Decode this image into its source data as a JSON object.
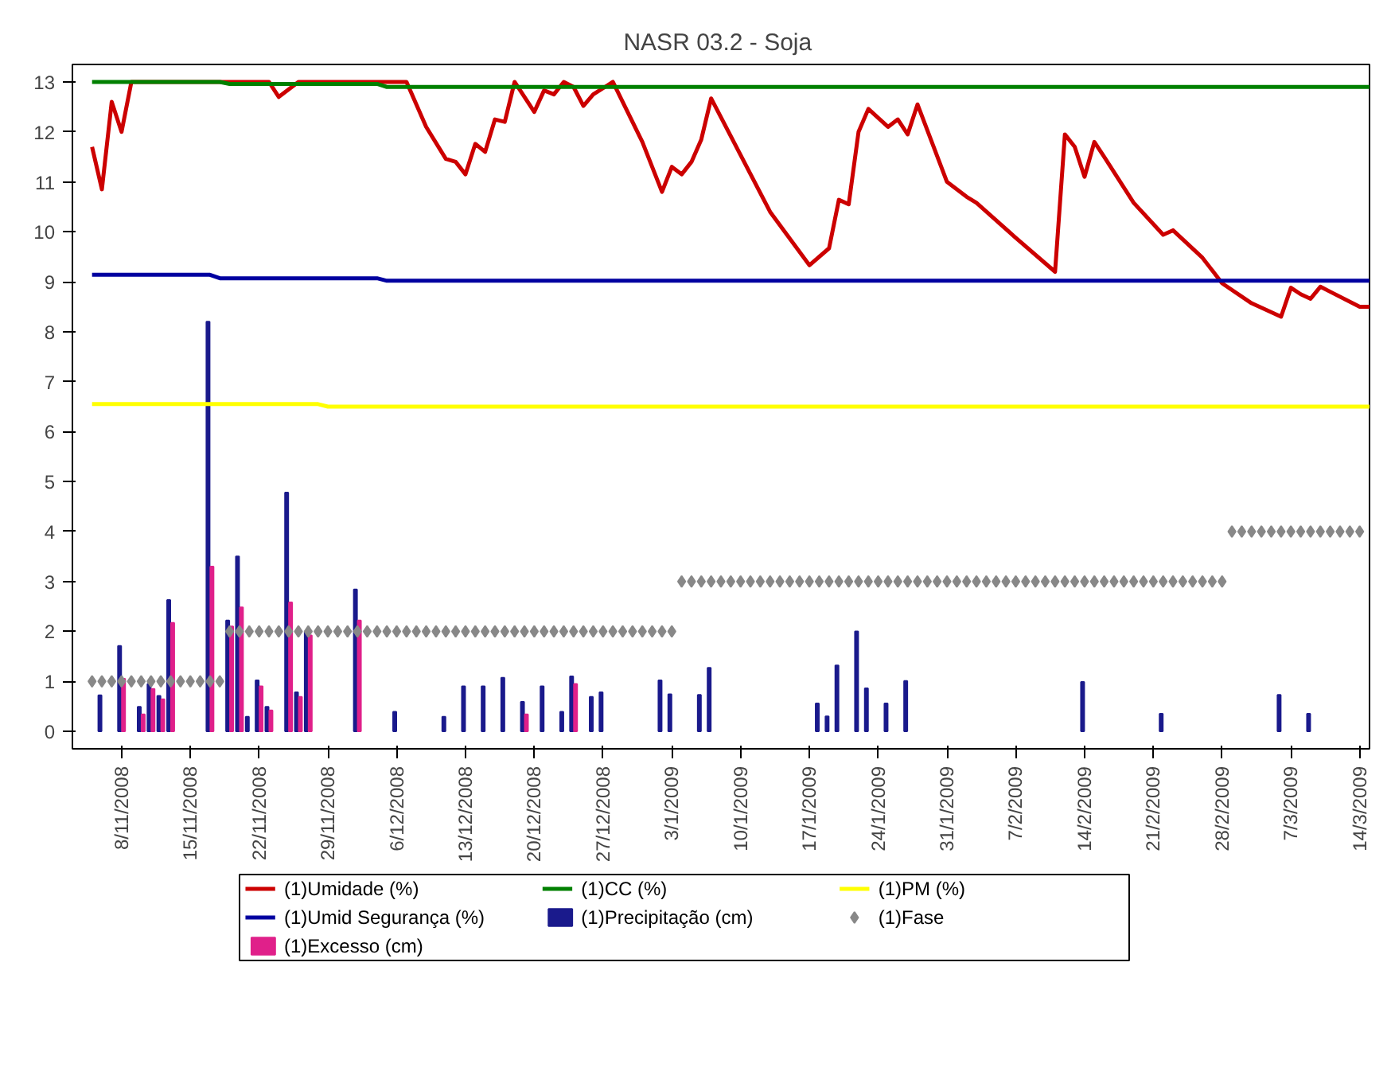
{
  "chart_data": {
    "type": "line",
    "title": "NASR 03.2  - Soja",
    "xlim": [
      "2008-11-03",
      "2009-03-15"
    ],
    "ylim": [
      -0.35,
      13.35
    ],
    "yticks": [
      0,
      1,
      2,
      3,
      4,
      5,
      6,
      7,
      8,
      9,
      10,
      11,
      12,
      13
    ],
    "xticks": [
      {
        "value": "2008-11-08",
        "label": "8/11/2008"
      },
      {
        "value": "2008-11-15",
        "label": "15/11/2008"
      },
      {
        "value": "2008-11-22",
        "label": "22/11/2008"
      },
      {
        "value": "2008-11-29",
        "label": "29/11/2008"
      },
      {
        "value": "2008-12-06",
        "label": "6/12/2008"
      },
      {
        "value": "2008-12-13",
        "label": "13/12/2008"
      },
      {
        "value": "2008-12-20",
        "label": "20/12/2008"
      },
      {
        "value": "2008-12-27",
        "label": "27/12/2008"
      },
      {
        "value": "2009-01-03",
        "label": "3/1/2009"
      },
      {
        "value": "2009-01-10",
        "label": "10/1/2009"
      },
      {
        "value": "2009-01-17",
        "label": "17/1/2009"
      },
      {
        "value": "2009-01-24",
        "label": "24/1/2009"
      },
      {
        "value": "2009-01-31",
        "label": "31/1/2009"
      },
      {
        "value": "2009-02-07",
        "label": "7/2/2009"
      },
      {
        "value": "2009-02-14",
        "label": "14/2/2009"
      },
      {
        "value": "2009-02-21",
        "label": "21/2/2009"
      },
      {
        "value": "2009-02-28",
        "label": "28/2/2009"
      },
      {
        "value": "2009-03-07",
        "label": "7/3/2009"
      },
      {
        "value": "2009-03-14",
        "label": "14/3/2009"
      }
    ],
    "grid": false,
    "legend": "bottom",
    "series": [
      {
        "name": "(1)Umidade (%)",
        "color": "#cc0000",
        "x": [
          "2008-11-05",
          "2008-11-06",
          "2008-11-07",
          "2008-11-08",
          "2008-11-09",
          "2008-11-23",
          "2008-11-24",
          "2008-11-26",
          "2008-12-07",
          "2008-12-09",
          "2008-12-11",
          "2008-12-12",
          "2008-12-13",
          "2008-12-14",
          "2008-12-15",
          "2008-12-16",
          "2008-12-17",
          "2008-12-18",
          "2008-12-20",
          "2008-12-21",
          "2008-12-22",
          "2008-12-23",
          "2008-12-24",
          "2008-12-25",
          "2008-12-26",
          "2008-12-28",
          "2008-12-29",
          "2008-12-31",
          "2009-01-02",
          "2009-01-03",
          "2009-01-04",
          "2009-01-05",
          "2009-01-06",
          "2009-01-07",
          "2009-01-13",
          "2009-01-17",
          "2009-01-19",
          "2009-01-20",
          "2009-01-21",
          "2009-01-22",
          "2009-01-23",
          "2009-01-25",
          "2009-01-26",
          "2009-01-27",
          "2009-01-28",
          "2009-01-31",
          "2009-02-02",
          "2009-02-03",
          "2009-02-07",
          "2009-02-11",
          "2009-02-12",
          "2009-02-13",
          "2009-02-14",
          "2009-02-15",
          "2009-02-16",
          "2009-02-19",
          "2009-02-22",
          "2009-02-23",
          "2009-02-26",
          "2009-02-28",
          "2009-03-03",
          "2009-03-06",
          "2009-03-07",
          "2009-03-08",
          "2009-03-09",
          "2009-03-10",
          "2009-03-11",
          "2009-03-14",
          "2009-03-15"
        ],
        "values": [
          11.7,
          10.85,
          12.6,
          12.0,
          13.0,
          13.0,
          12.7,
          13.0,
          13.0,
          12.1,
          11.46,
          11.4,
          11.15,
          11.76,
          11.6,
          12.25,
          12.2,
          13.0,
          12.4,
          12.83,
          12.75,
          13.0,
          12.9,
          12.52,
          12.75,
          13.0,
          12.6,
          11.8,
          10.8,
          11.3,
          11.15,
          11.4,
          11.85,
          12.67,
          10.4,
          9.33,
          9.67,
          10.64,
          10.55,
          12.0,
          12.46,
          12.1,
          12.25,
          11.95,
          12.55,
          11.0,
          10.7,
          10.58,
          9.88,
          9.2,
          11.95,
          11.7,
          11.1,
          11.8,
          11.5,
          10.58,
          9.94,
          10.03,
          9.48,
          8.97,
          8.57,
          8.3,
          8.88,
          8.75,
          8.66,
          8.9,
          8.8,
          8.5,
          8.5
        ]
      },
      {
        "type": "line",
        "name": "(1)CC (%)",
        "color": "#008000",
        "x": [
          "2008-11-05",
          "2008-11-18",
          "2008-11-19",
          "2008-12-04",
          "2008-12-05",
          "2009-03-15"
        ],
        "values": [
          13.0,
          13.0,
          12.96,
          12.96,
          12.9,
          12.9
        ]
      },
      {
        "type": "line",
        "name": "(1)PM (%)",
        "color": "#ffff00",
        "x": [
          "2008-11-05",
          "2008-11-28",
          "2008-11-29",
          "2009-03-15"
        ],
        "values": [
          6.55,
          6.55,
          6.5,
          6.5
        ]
      },
      {
        "type": "line",
        "name": "(1)Umid Segurança (%)",
        "color": "#0000a0",
        "x": [
          "2008-11-05",
          "2008-11-17",
          "2008-11-18",
          "2008-12-04",
          "2008-12-05",
          "2009-03-15"
        ],
        "values": [
          9.14,
          9.14,
          9.07,
          9.07,
          9.02,
          9.02
        ]
      },
      {
        "type": "bar",
        "name": "(1)Precipitação (cm)",
        "color": "#1a1a8c",
        "x": [
          "2008-11-06",
          "2008-11-08",
          "2008-11-10",
          "2008-11-11",
          "2008-11-12",
          "2008-11-13",
          "2008-11-17",
          "2008-11-19",
          "2008-11-20",
          "2008-11-21",
          "2008-11-22",
          "2008-11-23",
          "2008-11-25",
          "2008-11-26",
          "2008-11-27",
          "2008-12-02",
          "2008-12-06",
          "2008-12-11",
          "2008-12-13",
          "2008-12-15",
          "2008-12-17",
          "2008-12-19",
          "2008-12-21",
          "2008-12-23",
          "2008-12-24",
          "2008-12-26",
          "2008-12-27",
          "2009-01-02",
          "2009-01-03",
          "2009-01-06",
          "2009-01-07",
          "2009-01-18",
          "2009-01-19",
          "2009-01-20",
          "2009-01-22",
          "2009-01-23",
          "2009-01-25",
          "2009-01-27",
          "2009-02-14",
          "2009-02-22",
          "2009-03-06",
          "2009-03-09"
        ],
        "values": [
          0.72,
          1.71,
          0.49,
          0.95,
          0.71,
          2.63,
          8.2,
          2.22,
          3.5,
          0.29,
          1.02,
          0.49,
          4.78,
          0.78,
          1.99,
          2.84,
          0.39,
          0.29,
          0.9,
          0.9,
          1.07,
          0.59,
          0.9,
          0.39,
          1.1,
          0.69,
          0.78,
          1.02,
          0.74,
          0.73,
          1.27,
          0.56,
          0.3,
          1.32,
          2.0,
          0.86,
          0.56,
          1.01,
          0.99,
          0.35,
          0.73,
          0.35
        ]
      },
      {
        "type": "scatter",
        "name": "(1)Fase",
        "color": "#888888",
        "marker": "diamond",
        "x": [
          "2008-11-05",
          "2008-11-06",
          "2008-11-07",
          "2008-11-08",
          "2008-11-09",
          "2008-11-10",
          "2008-11-11",
          "2008-11-12",
          "2008-11-13",
          "2008-11-14",
          "2008-11-15",
          "2008-11-16",
          "2008-11-17",
          "2008-11-18",
          "2008-11-19",
          "2008-11-20",
          "2008-11-21",
          "2008-11-22",
          "2008-11-23",
          "2008-11-24",
          "2008-11-25",
          "2008-11-26",
          "2008-11-27",
          "2008-11-28",
          "2008-11-29",
          "2008-11-30",
          "2008-12-01",
          "2008-12-02",
          "2008-12-03",
          "2008-12-04",
          "2008-12-05",
          "2008-12-06",
          "2008-12-07",
          "2008-12-08",
          "2008-12-09",
          "2008-12-10",
          "2008-12-11",
          "2008-12-12",
          "2008-12-13",
          "2008-12-14",
          "2008-12-15",
          "2008-12-16",
          "2008-12-17",
          "2008-12-18",
          "2008-12-19",
          "2008-12-20",
          "2008-12-21",
          "2008-12-22",
          "2008-12-23",
          "2008-12-24",
          "2008-12-25",
          "2008-12-26",
          "2008-12-27",
          "2008-12-28",
          "2008-12-29",
          "2008-12-30",
          "2008-12-31",
          "2009-01-01",
          "2009-01-02",
          "2009-01-03",
          "2009-01-04",
          "2009-01-05",
          "2009-01-06",
          "2009-01-07",
          "2009-01-08",
          "2009-01-09",
          "2009-01-10",
          "2009-01-11",
          "2009-01-12",
          "2009-01-13",
          "2009-01-14",
          "2009-01-15",
          "2009-01-16",
          "2009-01-17",
          "2009-01-18",
          "2009-01-19",
          "2009-01-20",
          "2009-01-21",
          "2009-01-22",
          "2009-01-23",
          "2009-01-24",
          "2009-01-25",
          "2009-01-26",
          "2009-01-27",
          "2009-01-28",
          "2009-01-29",
          "2009-01-30",
          "2009-01-31",
          "2009-02-01",
          "2009-02-02",
          "2009-02-03",
          "2009-02-04",
          "2009-02-05",
          "2009-02-06",
          "2009-02-07",
          "2009-02-08",
          "2009-02-09",
          "2009-02-10",
          "2009-02-11",
          "2009-02-12",
          "2009-02-13",
          "2009-02-14",
          "2009-02-15",
          "2009-02-16",
          "2009-02-17",
          "2009-02-18",
          "2009-02-19",
          "2009-02-20",
          "2009-02-21",
          "2009-02-22",
          "2009-02-23",
          "2009-02-24",
          "2009-02-25",
          "2009-02-26",
          "2009-02-27",
          "2009-02-28",
          "2009-03-01",
          "2009-03-02",
          "2009-03-03",
          "2009-03-04",
          "2009-03-05",
          "2009-03-06",
          "2009-03-07",
          "2009-03-08",
          "2009-03-09",
          "2009-03-10",
          "2009-03-11",
          "2009-03-12",
          "2009-03-13",
          "2009-03-14"
        ],
        "values": [
          1,
          1,
          1,
          1,
          1,
          1,
          1,
          1,
          1,
          1,
          1,
          1,
          1,
          1,
          2,
          2,
          2,
          2,
          2,
          2,
          2,
          2,
          2,
          2,
          2,
          2,
          2,
          2,
          2,
          2,
          2,
          2,
          2,
          2,
          2,
          2,
          2,
          2,
          2,
          2,
          2,
          2,
          2,
          2,
          2,
          2,
          2,
          2,
          2,
          2,
          2,
          2,
          2,
          2,
          2,
          2,
          2,
          2,
          2,
          2,
          3,
          3,
          3,
          3,
          3,
          3,
          3,
          3,
          3,
          3,
          3,
          3,
          3,
          3,
          3,
          3,
          3,
          3,
          3,
          3,
          3,
          3,
          3,
          3,
          3,
          3,
          3,
          3,
          3,
          3,
          3,
          3,
          3,
          3,
          3,
          3,
          3,
          3,
          3,
          3,
          3,
          3,
          3,
          3,
          3,
          3,
          3,
          3,
          3,
          3,
          3,
          3,
          3,
          3,
          3,
          3,
          4,
          4,
          4,
          4,
          4,
          4,
          4,
          4,
          4,
          4,
          4,
          4,
          4,
          4
        ]
      },
      {
        "type": "bar",
        "name": "(1)Excesso (cm)",
        "color": "#e0208a",
        "x": [
          "2008-11-08",
          "2008-11-10",
          "2008-11-11",
          "2008-11-12",
          "2008-11-13",
          "2008-11-17",
          "2008-11-19",
          "2008-11-20",
          "2008-11-22",
          "2008-11-23",
          "2008-11-25",
          "2008-11-26",
          "2008-11-27",
          "2008-12-02",
          "2008-12-19",
          "2008-12-24"
        ],
        "values": [
          1.05,
          0.34,
          0.85,
          0.64,
          2.17,
          3.3,
          2.1,
          2.48,
          0.9,
          0.42,
          2.58,
          0.69,
          1.92,
          2.22,
          0.34,
          0.95
        ]
      }
    ]
  }
}
